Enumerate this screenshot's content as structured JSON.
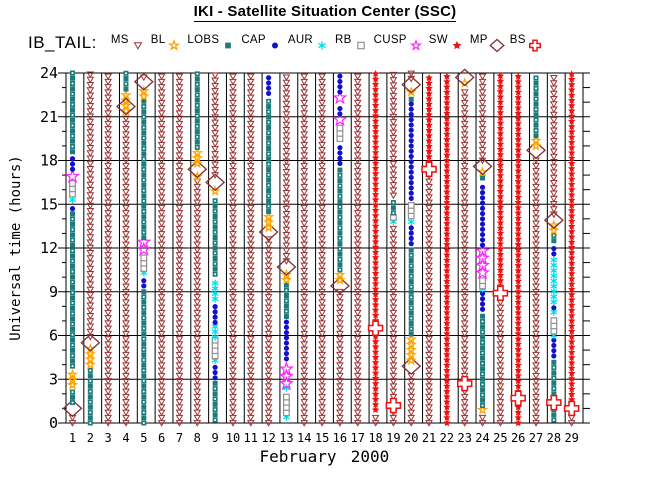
{
  "header": {
    "title": "IKI - Satellite Situation Center (SSC)",
    "dataset_label": "IB_TAIL:"
  },
  "chart_data": {
    "type": "scatter",
    "title": "IKI - Satellite Situation Center (SSC)",
    "xlabel_month": "February",
    "xlabel_year": "2000",
    "ylabel": "Universal time (hours)",
    "ylim": [
      0,
      24
    ],
    "yticks": [
      0,
      3,
      6,
      9,
      12,
      15,
      18,
      21,
      24
    ],
    "minor_tick_hours": 1,
    "grid": true,
    "legend_position": "top",
    "xticks": [
      "1",
      "2",
      "3",
      "4",
      "5",
      "6",
      "7",
      "8",
      "9",
      "10",
      "11",
      "12",
      "13",
      "14",
      "15",
      "16",
      "17",
      "18",
      "19",
      "20",
      "21",
      "22",
      "23",
      "24",
      "25",
      "26",
      "27",
      "28",
      "29"
    ],
    "regions": [
      {
        "id": "MS",
        "label": "MS",
        "shape": "triangle-down-open",
        "color": "#993333"
      },
      {
        "id": "BL",
        "label": "BL",
        "shape": "star-open-small",
        "color": "#FFA500"
      },
      {
        "id": "LOBS",
        "label": "LOBS",
        "shape": "square-filled",
        "color": "#1E7B7B"
      },
      {
        "id": "CAP",
        "label": "CAP",
        "shape": "circle-filled",
        "color": "#1111CC"
      },
      {
        "id": "AUR",
        "label": "AUR",
        "shape": "asterisk",
        "color": "#00DDE8"
      },
      {
        "id": "RB",
        "label": "RB",
        "shape": "square-open",
        "color": "#909090"
      },
      {
        "id": "CUSP",
        "label": "CUSP",
        "shape": "star-open-large",
        "color": "#FF22FF"
      },
      {
        "id": "SW",
        "label": "SW",
        "shape": "star-filled-small",
        "color": "#EE1111"
      },
      {
        "id": "MP",
        "label": "MP",
        "shape": "diamond-open-large",
        "color": "#803030"
      },
      {
        "id": "BS",
        "label": "BS",
        "shape": "cross-open-large",
        "color": "#EE1111"
      }
    ],
    "days": [
      {
        "day": 1,
        "segments": [
          {
            "r": "MS",
            "a": 0,
            "b": 0.6
          },
          {
            "r": "MP",
            "t": 1.0
          },
          {
            "r": "LOBS",
            "a": 1.4,
            "b": 2.3
          },
          {
            "r": "BL",
            "a": 2.6,
            "b": 3.6
          },
          {
            "r": "LOBS",
            "a": 3.9,
            "b": 14.4
          },
          {
            "r": "CAP",
            "a": 14.7,
            "b": 15.0
          },
          {
            "r": "AUR",
            "t": 15.3
          },
          {
            "r": "RB",
            "a": 15.7,
            "b": 16.5
          },
          {
            "r": "CUSP",
            "t": 16.9
          },
          {
            "r": "CAP",
            "a": 17.4,
            "b": 18.3
          },
          {
            "r": "LOBS",
            "a": 18.6,
            "b": 24
          }
        ]
      },
      {
        "day": 2,
        "segments": [
          {
            "r": "LOBS",
            "a": 0,
            "b": 3.7
          },
          {
            "r": "BL",
            "a": 4.0,
            "b": 5.2
          },
          {
            "r": "MP",
            "t": 5.5
          },
          {
            "r": "MS",
            "a": 5.9,
            "b": 24
          }
        ]
      },
      {
        "day": 3,
        "segments": [
          {
            "r": "MS",
            "a": 0,
            "b": 24
          }
        ]
      },
      {
        "day": 4,
        "segments": [
          {
            "r": "MS",
            "a": 0,
            "b": 21.1
          },
          {
            "r": "BL",
            "a": 21.4,
            "b": 22.6
          },
          {
            "r": "LOBS",
            "a": 22.9,
            "b": 24
          },
          {
            "r": "MP",
            "t": 21.7
          }
        ]
      },
      {
        "day": 5,
        "segments": [
          {
            "r": "LOBS",
            "a": 0,
            "b": 9.2
          },
          {
            "r": "CAP",
            "a": 9.4,
            "b": 10.1
          },
          {
            "r": "AUR",
            "t": 10.3
          },
          {
            "r": "RB",
            "a": 10.6,
            "b": 11.6
          },
          {
            "r": "CUSP",
            "a": 11.9,
            "b": 12.4
          },
          {
            "r": "LOBS",
            "a": 12.7,
            "b": 22.1
          },
          {
            "r": "BL",
            "a": 22.4,
            "b": 23.1
          },
          {
            "r": "MP",
            "t": 23.4
          },
          {
            "r": "MS",
            "a": 23.7,
            "b": 24
          }
        ]
      },
      {
        "day": 6,
        "segments": [
          {
            "r": "MS",
            "a": 0,
            "b": 24
          }
        ]
      },
      {
        "day": 7,
        "segments": [
          {
            "r": "MS",
            "a": 0,
            "b": 24
          }
        ]
      },
      {
        "day": 8,
        "segments": [
          {
            "r": "MS",
            "a": 0,
            "b": 16.6
          },
          {
            "r": "BL",
            "t": 16.9
          },
          {
            "r": "MP",
            "t": 17.4
          },
          {
            "r": "BL",
            "a": 17.8,
            "b": 18.6
          },
          {
            "r": "LOBS",
            "a": 18.9,
            "b": 24
          }
        ]
      },
      {
        "day": 9,
        "segments": [
          {
            "r": "LOBS",
            "a": 0.2,
            "b": 2.9
          },
          {
            "r": "CAP",
            "a": 3.1,
            "b": 4.1
          },
          {
            "r": "AUR",
            "t": 4.3
          },
          {
            "r": "RB",
            "a": 4.6,
            "b": 5.7
          },
          {
            "r": "AUR",
            "a": 5.9,
            "b": 6.7
          },
          {
            "r": "CAP",
            "a": 6.9,
            "b": 8.3
          },
          {
            "r": "AUR",
            "a": 8.5,
            "b": 9.9
          },
          {
            "r": "LOBS",
            "a": 10.2,
            "b": 15.5
          },
          {
            "r": "BL",
            "t": 15.9
          },
          {
            "r": "MP",
            "t": 16.5
          },
          {
            "r": "MS",
            "a": 17.0,
            "b": 24
          }
        ]
      },
      {
        "day": 10,
        "segments": [
          {
            "r": "MS",
            "a": 0,
            "b": 24
          }
        ]
      },
      {
        "day": 11,
        "segments": [
          {
            "r": "MS",
            "a": 0,
            "b": 24
          }
        ]
      },
      {
        "day": 12,
        "segments": [
          {
            "r": "MS",
            "a": 0,
            "b": 12.8
          },
          {
            "r": "MP",
            "t": 13.1
          },
          {
            "r": "BL",
            "a": 13.4,
            "b": 14.2
          },
          {
            "r": "LOBS",
            "a": 14.5,
            "b": 22.3
          },
          {
            "r": "CAP",
            "a": 22.6,
            "b": 24
          }
        ]
      },
      {
        "day": 13,
        "segments": [
          {
            "r": "AUR",
            "t": 0.4
          },
          {
            "r": "RB",
            "a": 0.7,
            "b": 2.1
          },
          {
            "r": "AUR",
            "t": 2.4
          },
          {
            "r": "CUSP",
            "a": 2.7,
            "b": 4.1
          },
          {
            "r": "CAP",
            "a": 4.4,
            "b": 7.0
          },
          {
            "r": "LOBS",
            "a": 7.3,
            "b": 9.5
          },
          {
            "r": "BL",
            "a": 9.8,
            "b": 10.4
          },
          {
            "r": "MP",
            "t": 10.7
          },
          {
            "r": "MS",
            "a": 11.1,
            "b": 24
          }
        ]
      },
      {
        "day": 14,
        "segments": [
          {
            "r": "MS",
            "a": 0,
            "b": 24
          }
        ]
      },
      {
        "day": 15,
        "segments": [
          {
            "r": "MS",
            "a": 0,
            "b": 24
          }
        ]
      },
      {
        "day": 16,
        "segments": [
          {
            "r": "MS",
            "a": 0,
            "b": 9.0
          },
          {
            "r": "MP",
            "t": 9.4
          },
          {
            "r": "BL",
            "a": 9.8,
            "b": 10.2
          },
          {
            "r": "LOBS",
            "a": 10.5,
            "b": 17.5
          },
          {
            "r": "CAP",
            "a": 17.8,
            "b": 19.2
          },
          {
            "r": "RB",
            "a": 19.5,
            "b": 20.3
          },
          {
            "r": "CUSP",
            "t": 20.8
          },
          {
            "r": "CAP",
            "a": 21.2,
            "b": 21.9
          },
          {
            "r": "CUSP",
            "t": 22.3
          },
          {
            "r": "CAP",
            "a": 22.7,
            "b": 24
          }
        ]
      },
      {
        "day": 17,
        "segments": [
          {
            "r": "MS",
            "a": 0,
            "b": 24
          }
        ]
      },
      {
        "day": 18,
        "segments": [
          {
            "r": "MS",
            "a": 0,
            "b": 0.5
          },
          {
            "r": "SW",
            "a": 0.9,
            "b": 24
          },
          {
            "r": "BS",
            "t": 6.5
          }
        ]
      },
      {
        "day": 19,
        "segments": [
          {
            "r": "MS",
            "a": 0,
            "b": 13.5
          },
          {
            "r": "AUR",
            "t": 13.8
          },
          {
            "r": "RB",
            "t": 14.1
          },
          {
            "r": "LOBS",
            "a": 14.4,
            "b": 15.3
          },
          {
            "r": "MS",
            "a": 15.6,
            "b": 24
          },
          {
            "r": "BS",
            "t": 1.2
          }
        ]
      },
      {
        "day": 20,
        "segments": [
          {
            "r": "MS",
            "a": 0,
            "b": 3.4
          },
          {
            "r": "MP",
            "t": 3.9
          },
          {
            "r": "BL",
            "a": 4.3,
            "b": 5.8
          },
          {
            "r": "LOBS",
            "a": 6.1,
            "b": 12.0
          },
          {
            "r": "CAP",
            "a": 12.3,
            "b": 13.4
          },
          {
            "r": "AUR",
            "t": 13.8
          },
          {
            "r": "RB",
            "a": 14.2,
            "b": 15.1
          },
          {
            "r": "CAP",
            "a": 15.4,
            "b": 21.9
          },
          {
            "r": "LOBS",
            "t": 22.2
          },
          {
            "r": "BL",
            "t": 22.7
          },
          {
            "r": "MP",
            "t": 23.2
          },
          {
            "r": "MS",
            "a": 23.6,
            "b": 24
          }
        ]
      },
      {
        "day": 21,
        "segments": [
          {
            "r": "MS",
            "a": 0,
            "b": 17.0
          },
          {
            "r": "SW",
            "a": 17.9,
            "b": 24
          },
          {
            "r": "BS",
            "t": 17.4
          }
        ]
      },
      {
        "day": 22,
        "segments": [
          {
            "r": "SW",
            "a": 0,
            "b": 24
          }
        ]
      },
      {
        "day": 23,
        "segments": [
          {
            "r": "MS",
            "a": 0,
            "b": 23.0
          },
          {
            "r": "BL",
            "t": 23.3
          },
          {
            "r": "MP",
            "t": 23.7
          },
          {
            "r": "BS",
            "t": 2.7
          }
        ]
      },
      {
        "day": 24,
        "segments": [
          {
            "r": "MS",
            "a": 0,
            "b": 0.5
          },
          {
            "r": "BL",
            "t": 0.9
          },
          {
            "r": "LOBS",
            "a": 1.2,
            "b": 7.5
          },
          {
            "r": "CAP",
            "a": 7.8,
            "b": 9.0
          },
          {
            "r": "AUR",
            "t": 9.2
          },
          {
            "r": "RB",
            "a": 9.4,
            "b": 10.0
          },
          {
            "r": "CUSP",
            "a": 10.3,
            "b": 11.9
          },
          {
            "r": "CAP",
            "a": 12.2,
            "b": 16.5
          },
          {
            "r": "LOBS",
            "t": 16.8
          },
          {
            "r": "BL",
            "t": 17.2
          },
          {
            "r": "MP",
            "t": 17.6
          },
          {
            "r": "MS",
            "a": 18.0,
            "b": 24
          }
        ]
      },
      {
        "day": 25,
        "segments": [
          {
            "r": "MS",
            "a": 0,
            "b": 8.5
          },
          {
            "r": "SW",
            "a": 9.4,
            "b": 24
          },
          {
            "r": "BS",
            "t": 8.9
          }
        ]
      },
      {
        "day": 26,
        "segments": [
          {
            "r": "SW",
            "a": 0,
            "b": 24
          },
          {
            "r": "BS",
            "t": 1.7
          }
        ]
      },
      {
        "day": 27,
        "segments": [
          {
            "r": "MS",
            "a": 0,
            "b": 18.2
          },
          {
            "r": "MP",
            "t": 18.7
          },
          {
            "r": "BL",
            "a": 19.0,
            "b": 19.4
          },
          {
            "r": "LOBS",
            "a": 19.7,
            "b": 24
          }
        ]
      },
      {
        "day": 28,
        "segments": [
          {
            "r": "LOBS",
            "a": 0.2,
            "b": 4.3
          },
          {
            "r": "CAP",
            "a": 4.6,
            "b": 5.7
          },
          {
            "r": "AUR",
            "t": 6.0
          },
          {
            "r": "RB",
            "a": 6.3,
            "b": 7.3
          },
          {
            "r": "AUR",
            "t": 7.6
          },
          {
            "r": "CAP",
            "a": 7.9,
            "b": 8.1
          },
          {
            "r": "AUR",
            "a": 8.3,
            "b": 11.4
          },
          {
            "r": "CAP",
            "a": 11.6,
            "b": 12.2
          },
          {
            "r": "LOBS",
            "a": 12.5,
            "b": 12.9
          },
          {
            "r": "BL",
            "a": 13.2,
            "b": 13.6
          },
          {
            "r": "MP",
            "t": 13.9
          },
          {
            "r": "MS",
            "a": 14.3,
            "b": 24
          },
          {
            "r": "BS",
            "t": 1.4
          }
        ]
      },
      {
        "day": 29,
        "segments": [
          {
            "r": "MS",
            "a": 0,
            "b": 0.4
          },
          {
            "r": "SW",
            "a": 1.6,
            "b": 24
          },
          {
            "r": "BS",
            "t": 1.0
          }
        ]
      }
    ]
  }
}
